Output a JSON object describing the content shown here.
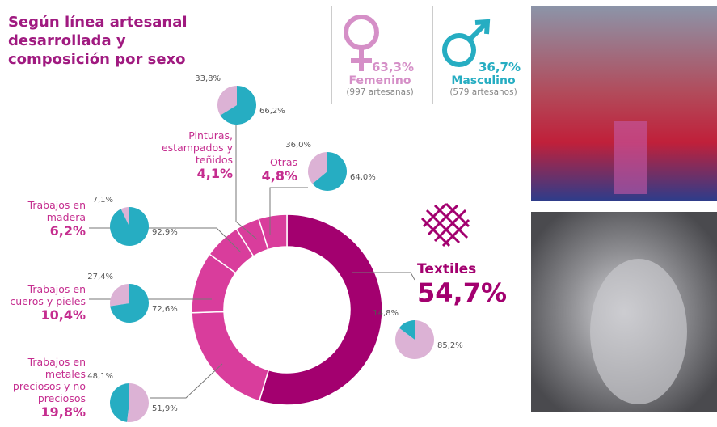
{
  "chart_data": {
    "type": "donut",
    "title": "Según línea artesanal desarrollada y composición por sexo",
    "categories": [
      "Textiles",
      "Trabajos en metales preciosos y no preciosos",
      "Trabajos en cueros y pieles",
      "Trabajos en madera",
      "Pinturas, estampados y teñidos",
      "Otras"
    ],
    "values": [
      54.7,
      19.8,
      10.4,
      6.2,
      4.1,
      4.8
    ],
    "value_labels": [
      "54,7%",
      "19,8%",
      "10,4%",
      "6,2%",
      "4,1%",
      "4,8%"
    ],
    "colors": [
      "#a3006f",
      "#d93d9c",
      "#d93d9c",
      "#d93d9c",
      "#d93d9c",
      "#d93d9c"
    ],
    "breakdown": {
      "type": "pie",
      "series": [
        {
          "name": "Femenino",
          "color": "#dcb2d5",
          "total_label": "63,3%",
          "count_label": "(997 artesanas)",
          "values": [
            85.2,
            51.9,
            27.4,
            7.1,
            33.8,
            36.0
          ],
          "value_labels": [
            "85,2%",
            "51,9%",
            "27,4%",
            "7,1%",
            "33,8%",
            "36,0%"
          ]
        },
        {
          "name": "Masculino",
          "color": "#26adc2",
          "total_label": "36,7%",
          "count_label": "(579 artesanos)",
          "values": [
            14.8,
            48.1,
            72.6,
            92.9,
            66.2,
            64.0
          ],
          "value_labels": [
            "14,8%",
            "48,1%",
            "72,6%",
            "92,9%",
            "66,2%",
            "64,0%"
          ]
        }
      ]
    }
  }
}
